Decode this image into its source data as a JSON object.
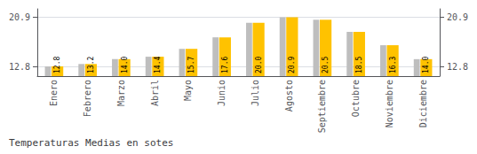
{
  "chart_data": {
    "type": "bar",
    "title": "Temperaturas Medias en sotes",
    "categories": [
      "Enero",
      "Febrero",
      "Marzo",
      "Abril",
      "Mayo",
      "Junio",
      "Julio",
      "Agosto",
      "Septiembre",
      "Octubre",
      "Noviembre",
      "Diciembre"
    ],
    "series": [
      {
        "color": "#BEBEBE",
        "values": [
          12.8,
          13.2,
          14.0,
          14.4,
          15.7,
          17.6,
          20.0,
          20.9,
          20.5,
          18.5,
          16.3,
          14.0
        ]
      },
      {
        "color": "#FFC200",
        "values": [
          12.8,
          13.2,
          14.0,
          14.4,
          15.7,
          17.6,
          20.0,
          20.9,
          20.5,
          18.5,
          16.3,
          14.0
        ],
        "value_labels": [
          "12.8",
          "13.2",
          "14.0",
          "14.4",
          "15.7",
          "17.6",
          "20.0",
          "20.9",
          "20.5",
          "18.5",
          "16.3",
          "14.0"
        ]
      }
    ],
    "data_labels": true,
    "ylim": [
      11.2,
      22.3
    ],
    "yticks": [
      12.8,
      20.9
    ],
    "y2lim": [
      11.2,
      22.3
    ],
    "y2ticks": [
      12.8,
      20.9
    ],
    "grid": true
  }
}
